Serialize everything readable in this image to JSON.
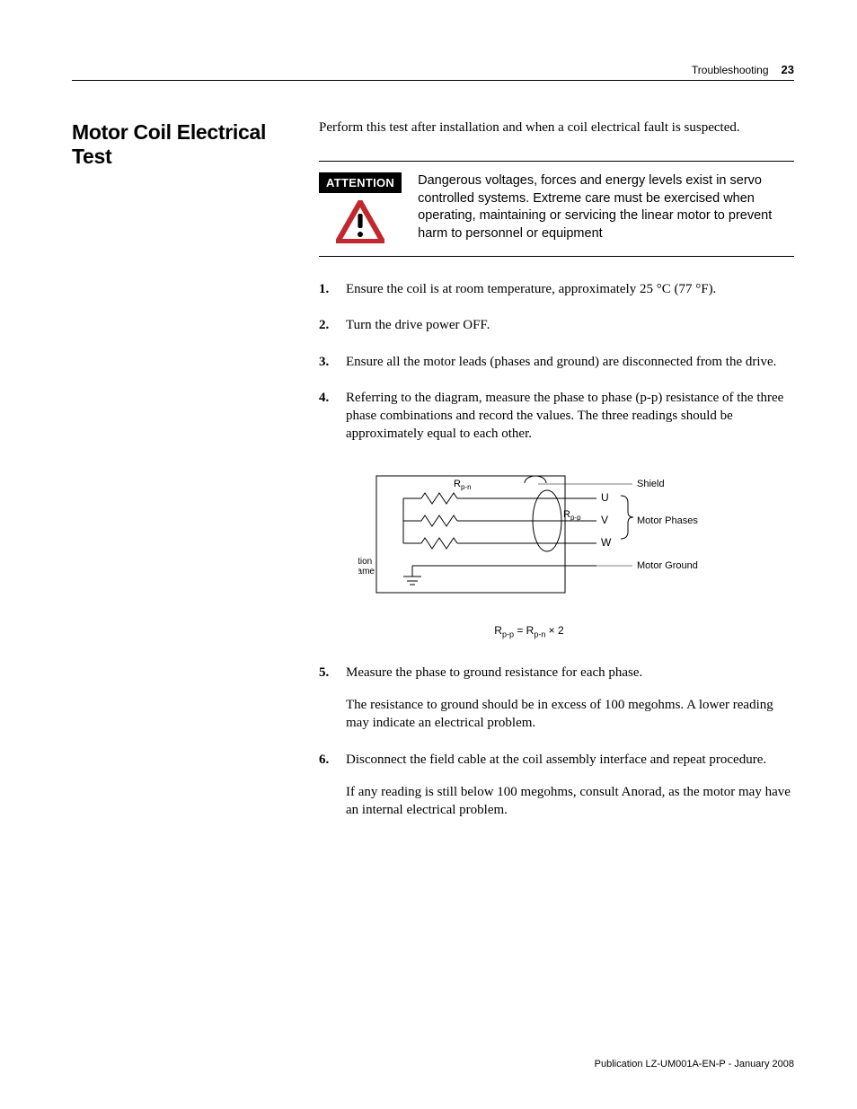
{
  "header": {
    "section": "Troubleshooting",
    "page": "23"
  },
  "title": "Motor Coil Electrical Test",
  "intro": "Perform this test after installation and when a coil electrical fault is suspected.",
  "attention": {
    "badge": "ATTENTION",
    "text": "Dangerous voltages, forces and energy levels exist in servo controlled systems. Extreme care must be exercised when operating, maintaining or servicing the linear motor to prevent harm to personnel or equipment",
    "triangle_color": "#c1272d"
  },
  "steps": [
    {
      "html": "Ensure the coil is at room temperature, approximately 25 °C (77 °F)."
    },
    {
      "html": "Turn the drive power OFF."
    },
    {
      "html": "Ensure all the motor leads (phases and ground) are disconnected from the drive."
    },
    {
      "html": "Referring to the diagram, measure the phase to phase (p-p) resistance of the three phase combinations and record the values. The three readings should be approximately equal to each other."
    },
    {
      "html": "Measure the phase to ground resistance for each phase.",
      "para": "The resistance to ground should be in excess of 100 megohms. A lower reading may indicate an electrical problem."
    },
    {
      "html": "Disconnect the field cable at the coil assembly interface and repeat procedure.",
      "para": "If any reading is still below 100 megohms, consult Anorad, as the motor may have an internal electrical problem."
    }
  ],
  "diagram": {
    "box_stroke": "#000000",
    "text_color": "#000000",
    "labels": {
      "rpn": "R",
      "rpn_sub": "p-n",
      "rpp": "R",
      "rpp_sub": "p-p",
      "u": "U",
      "v": "V",
      "w": "W",
      "shield": "Shield",
      "phases": "Motor Phases",
      "ground": "Motor Ground",
      "lamination": "Lamination",
      "frame": "Frame"
    },
    "formula": "R<sub>p-p</sub> = R<sub>p-n</sub> × 2"
  },
  "footer": "Publication LZ-UM001A-EN-P - January 2008"
}
